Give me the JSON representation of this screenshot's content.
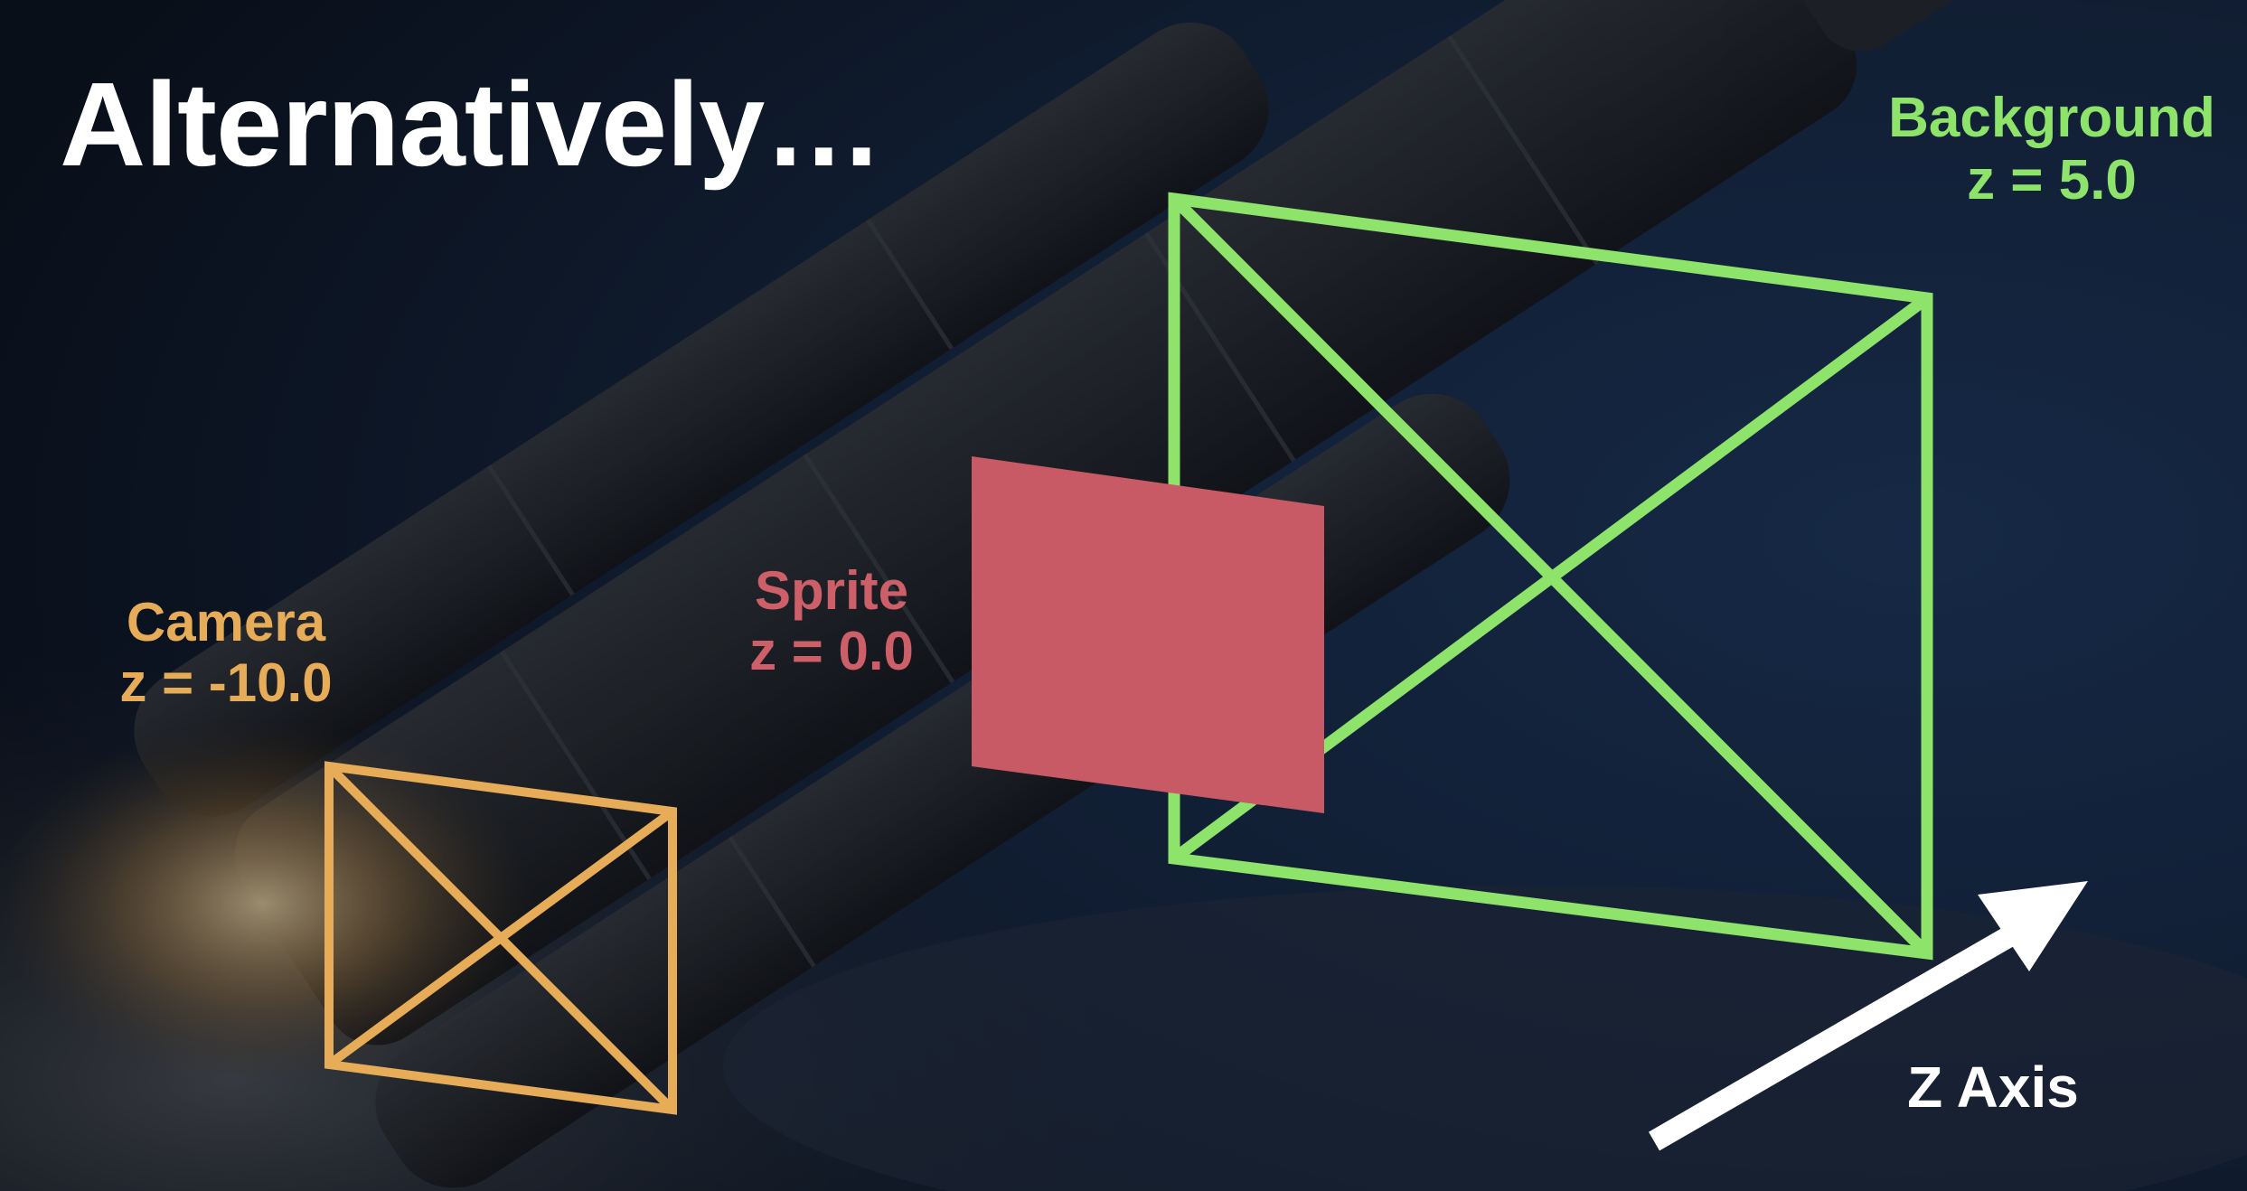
{
  "slide": {
    "title": "Alternatively…"
  },
  "camera": {
    "name": "Camera",
    "z_label": "z = -10.0",
    "color": "#e7ac57"
  },
  "sprite": {
    "name": "Sprite",
    "z_label": "z = 0.0",
    "color": "#c85a66"
  },
  "background": {
    "name": "Background",
    "z_label": "z = 5.0",
    "color": "#8ee36b"
  },
  "axis": {
    "label": "Z Axis",
    "color": "#ffffff"
  }
}
